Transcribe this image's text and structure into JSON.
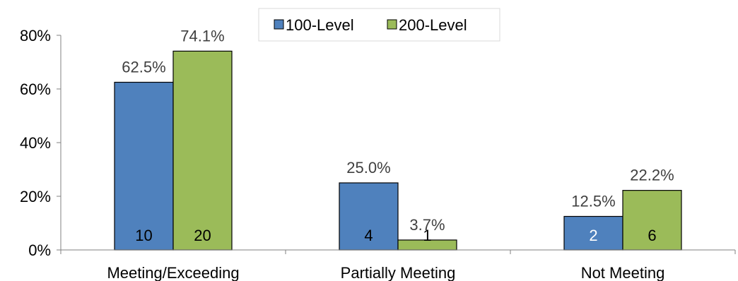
{
  "chart_data": {
    "type": "bar",
    "categories": [
      "Meeting/Exceeding",
      "Partially Meeting",
      "Not Meeting"
    ],
    "series": [
      {
        "name": "100-Level",
        "color": "#4f81bd",
        "values": [
          62.5,
          25.0,
          12.5
        ],
        "value_labels": [
          "62.5%",
          "25.0%",
          "12.5%"
        ],
        "count_labels": [
          "10",
          "4",
          "2"
        ],
        "count_label_color": "#000000"
      },
      {
        "name": "200-Level",
        "color": "#9bbb59",
        "values": [
          74.1,
          3.7,
          22.2
        ],
        "value_labels": [
          "74.1%",
          "3.7%",
          "22.2%"
        ],
        "count_labels": [
          "20",
          "1",
          "6"
        ],
        "count_label_color": "#000000"
      }
    ],
    "count_label_overrides": [
      {
        "series": 0,
        "index": 2,
        "color": "#ffffff"
      }
    ],
    "ylim": [
      0,
      80
    ],
    "yticks": [
      0,
      20,
      40,
      60,
      80
    ],
    "ytick_labels": [
      "0%",
      "20%",
      "40%",
      "60%",
      "80%"
    ],
    "title": "",
    "xlabel": "",
    "ylabel": "",
    "grid": false,
    "legend": "top-center",
    "bar_edge_color": "#000000",
    "axis_color": "#808080",
    "value_label_color": "#404040"
  }
}
